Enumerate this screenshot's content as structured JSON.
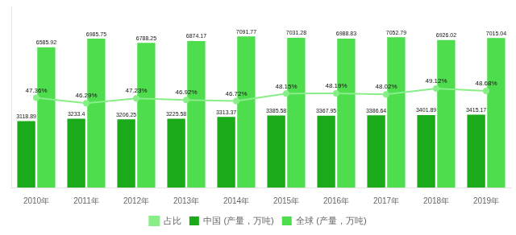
{
  "chart_data": {
    "type": "bar",
    "categories": [
      "2010年",
      "2011年",
      "2012年",
      "2013年",
      "2014年",
      "2015年",
      "2016年",
      "2017年",
      "2018年",
      "2019年"
    ],
    "series": [
      {
        "name": "中国 (产量，万吨)",
        "color": "#1aaa1a",
        "values": [
          3118.89,
          3233.4,
          3206.25,
          3225.58,
          3313.37,
          3385.58,
          3367.95,
          3386.64,
          3401.89,
          3415.17
        ]
      },
      {
        "name": "全球 (产量，万吨)",
        "color": "#4ddd4d",
        "values": [
          6585.92,
          6985.75,
          6788.25,
          6874.17,
          7091.77,
          7031.28,
          6988.83,
          7052.79,
          6926.02,
          7015.04
        ]
      },
      {
        "name": "占比",
        "type": "line",
        "axis": "y2",
        "color": "#88ee88",
        "marker": "circle",
        "values": [
          47.36,
          46.29,
          47.23,
          46.92,
          46.72,
          48.15,
          48.19,
          48.02,
          49.12,
          48.68
        ],
        "value_labels": [
          "47.36%",
          "46.29%",
          "47.23%",
          "46.92%",
          "46.72%",
          "48.15%",
          "48.19%",
          "48.02%",
          "49.12%",
          "48.68%"
        ]
      }
    ],
    "ylim": [
      0,
      8500
    ],
    "y2lim": [
      30,
      65
    ],
    "grid": false,
    "legend": "bottom",
    "data_labels": true,
    "tick_labels": "x"
  }
}
